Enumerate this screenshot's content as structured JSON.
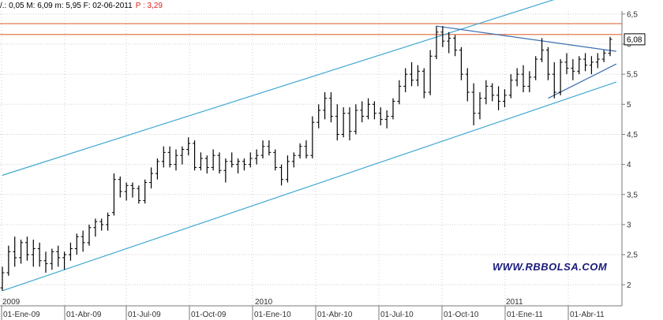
{
  "header": {
    "left": "/.: 0,05 M: 6,09 m: 5,95 F: 02-06-2011",
    "p": "P : 3,29"
  },
  "watermark": "WWW.RBBOLSA.COM",
  "colors": {
    "bars": "#000000",
    "channel": "#3fa8d0",
    "triangle": "#3a6fb0",
    "resistance": "#e07a50",
    "grid": "#cfcfcf",
    "axis": "#7a7a7a"
  },
  "chart_data": {
    "type": "ohlc",
    "y_axis": {
      "min": 1.65,
      "max": 6.55,
      "position": "right",
      "ticks": [
        "6,5",
        "6",
        "5,5",
        "5",
        "4,5",
        "4",
        "3,5",
        "3",
        "2,5",
        "2"
      ],
      "tick_values": [
        6.5,
        6.0,
        5.5,
        5.0,
        4.5,
        4.0,
        3.5,
        3.0,
        2.5,
        2.0
      ]
    },
    "x_axis": {
      "ticks": [
        "01-Ene-09",
        "01-Abr-09",
        "01-Jul-09",
        "01-Oct-09",
        "01-Ene-10",
        "01-Abr-10",
        "01-Jul-10",
        "01-Oct-10",
        "01-Ene-11",
        "01-Abr-11"
      ],
      "years": [
        "2009",
        "2010",
        "2011"
      ]
    },
    "last_value": {
      "label": "6,08",
      "value": 6.08
    },
    "series": [
      {
        "name": "bars",
        "values": [
          [
            1.95,
            2.3,
            1.9,
            2.2
          ],
          [
            2.2,
            2.65,
            2.15,
            2.55
          ],
          [
            2.55,
            2.8,
            2.3,
            2.45
          ],
          [
            2.45,
            2.75,
            2.35,
            2.7
          ],
          [
            2.7,
            2.8,
            2.4,
            2.5
          ],
          [
            2.5,
            2.75,
            2.3,
            2.6
          ],
          [
            2.6,
            2.7,
            2.3,
            2.4
          ],
          [
            2.4,
            2.55,
            2.2,
            2.35
          ],
          [
            2.35,
            2.6,
            2.25,
            2.55
          ],
          [
            2.55,
            2.65,
            2.3,
            2.45
          ],
          [
            2.45,
            2.55,
            2.25,
            2.5
          ],
          [
            2.5,
            2.7,
            2.4,
            2.6
          ],
          [
            2.6,
            2.85,
            2.5,
            2.8
          ],
          [
            2.8,
            2.9,
            2.55,
            2.7
          ],
          [
            2.7,
            3.0,
            2.65,
            2.95
          ],
          [
            2.95,
            3.1,
            2.8,
            3.05
          ],
          [
            3.05,
            3.1,
            2.9,
            3.0
          ],
          [
            3.0,
            3.2,
            2.9,
            3.15
          ],
          [
            3.2,
            3.85,
            3.15,
            3.75
          ],
          [
            3.75,
            3.8,
            3.45,
            3.55
          ],
          [
            3.55,
            3.7,
            3.4,
            3.65
          ],
          [
            3.65,
            3.7,
            3.45,
            3.6
          ],
          [
            3.6,
            3.65,
            3.35,
            3.4
          ],
          [
            3.4,
            3.75,
            3.35,
            3.7
          ],
          [
            3.7,
            3.95,
            3.6,
            3.85
          ],
          [
            3.85,
            4.1,
            3.75,
            4.05
          ],
          [
            4.05,
            4.3,
            3.95,
            4.2
          ],
          [
            4.2,
            4.3,
            3.95,
            4.0
          ],
          [
            4.0,
            4.25,
            3.9,
            4.15
          ],
          [
            4.15,
            4.3,
            4.0,
            4.25
          ],
          [
            4.25,
            4.45,
            4.15,
            4.35
          ],
          [
            4.35,
            4.4,
            3.9,
            3.95
          ],
          [
            3.95,
            4.2,
            3.9,
            4.1
          ],
          [
            4.1,
            4.15,
            3.85,
            3.95
          ],
          [
            3.95,
            4.25,
            3.9,
            4.15
          ],
          [
            4.15,
            4.2,
            3.85,
            3.9
          ],
          [
            3.9,
            4.1,
            3.7,
            4.05
          ],
          [
            4.05,
            4.2,
            3.95,
            4.0
          ],
          [
            4.0,
            4.1,
            3.85,
            4.05
          ],
          [
            4.05,
            4.1,
            3.9,
            4.0
          ],
          [
            4.0,
            4.2,
            3.95,
            4.1
          ],
          [
            4.1,
            4.25,
            4.0,
            4.15
          ],
          [
            4.15,
            4.4,
            4.1,
            4.3
          ],
          [
            4.3,
            4.4,
            4.15,
            4.2
          ],
          [
            4.2,
            4.25,
            3.9,
            3.95
          ],
          [
            3.95,
            4.0,
            3.65,
            3.75
          ],
          [
            3.75,
            4.15,
            3.7,
            4.05
          ],
          [
            4.05,
            4.2,
            3.95,
            4.15
          ],
          [
            4.15,
            4.35,
            4.1,
            4.3
          ],
          [
            4.3,
            4.4,
            4.1,
            4.15
          ],
          [
            4.15,
            4.8,
            4.1,
            4.7
          ],
          [
            4.7,
            5.0,
            4.6,
            4.9
          ],
          [
            4.9,
            5.2,
            4.75,
            5.1
          ],
          [
            5.1,
            5.2,
            4.7,
            4.8
          ],
          [
            4.8,
            5.0,
            4.4,
            4.5
          ],
          [
            4.5,
            4.95,
            4.45,
            4.85
          ],
          [
            4.85,
            4.95,
            4.4,
            4.55
          ],
          [
            4.55,
            5.0,
            4.5,
            4.9
          ],
          [
            4.9,
            5.05,
            4.7,
            4.8
          ],
          [
            4.8,
            5.1,
            4.75,
            5.0
          ],
          [
            5.0,
            5.05,
            4.75,
            4.85
          ],
          [
            4.85,
            4.95,
            4.65,
            4.75
          ],
          [
            4.75,
            4.9,
            4.6,
            4.8
          ],
          [
            4.8,
            5.1,
            4.75,
            5.05
          ],
          [
            5.05,
            5.4,
            5.0,
            5.3
          ],
          [
            5.3,
            5.6,
            5.2,
            5.5
          ],
          [
            5.5,
            5.7,
            5.3,
            5.4
          ],
          [
            5.4,
            5.65,
            5.3,
            5.55
          ],
          [
            5.55,
            5.6,
            5.1,
            5.2
          ],
          [
            5.2,
            5.9,
            5.15,
            5.8
          ],
          [
            5.8,
            6.3,
            5.75,
            6.2
          ],
          [
            6.2,
            6.3,
            5.95,
            6.05
          ],
          [
            6.05,
            6.2,
            5.85,
            6.1
          ],
          [
            6.1,
            6.15,
            5.8,
            5.9
          ],
          [
            5.9,
            5.95,
            5.4,
            5.5
          ],
          [
            5.5,
            5.6,
            5.05,
            5.2
          ],
          [
            5.2,
            5.35,
            4.65,
            4.85
          ],
          [
            4.85,
            5.2,
            4.75,
            5.1
          ],
          [
            5.1,
            5.4,
            5.0,
            5.3
          ],
          [
            5.3,
            5.35,
            5.05,
            5.15
          ],
          [
            5.15,
            5.3,
            4.9,
            5.05
          ],
          [
            5.05,
            5.25,
            4.95,
            5.15
          ],
          [
            5.15,
            5.5,
            5.1,
            5.4
          ],
          [
            5.4,
            5.6,
            5.3,
            5.5
          ],
          [
            5.5,
            5.65,
            5.2,
            5.3
          ],
          [
            5.3,
            5.55,
            5.2,
            5.45
          ],
          [
            5.45,
            5.8,
            5.4,
            5.75
          ],
          [
            5.75,
            6.1,
            5.7,
            5.9
          ],
          [
            5.9,
            5.95,
            5.4,
            5.5
          ],
          [
            5.5,
            5.7,
            5.1,
            5.2
          ],
          [
            5.2,
            5.75,
            5.15,
            5.7
          ],
          [
            5.7,
            5.85,
            5.5,
            5.6
          ],
          [
            5.6,
            5.75,
            5.4,
            5.55
          ],
          [
            5.55,
            5.8,
            5.5,
            5.75
          ],
          [
            5.75,
            5.85,
            5.55,
            5.65
          ],
          [
            5.65,
            5.8,
            5.5,
            5.7
          ],
          [
            5.7,
            5.85,
            5.6,
            5.75
          ],
          [
            5.75,
            5.9,
            5.7,
            5.85
          ],
          [
            5.85,
            6.12,
            5.8,
            6.08
          ]
        ]
      }
    ],
    "annotations": [
      {
        "name": "upper-channel",
        "type": "trendline",
        "from": [
          0,
          3.82
        ],
        "to": [
          99,
          7.07
        ]
      },
      {
        "name": "lower-channel",
        "type": "trendline",
        "from": [
          0,
          1.9
        ],
        "to": [
          99,
          5.37
        ]
      },
      {
        "name": "triangle-upper",
        "type": "trendline",
        "from": [
          70,
          6.3
        ],
        "to": [
          99,
          5.88
        ]
      },
      {
        "name": "triangle-lower",
        "type": "trendline",
        "from": [
          88,
          5.1
        ],
        "to": [
          99,
          5.67
        ]
      },
      {
        "name": "resistance-1",
        "type": "hline",
        "y": 6.34
      },
      {
        "name": "resistance-2",
        "type": "hline",
        "y": 6.16
      }
    ]
  }
}
